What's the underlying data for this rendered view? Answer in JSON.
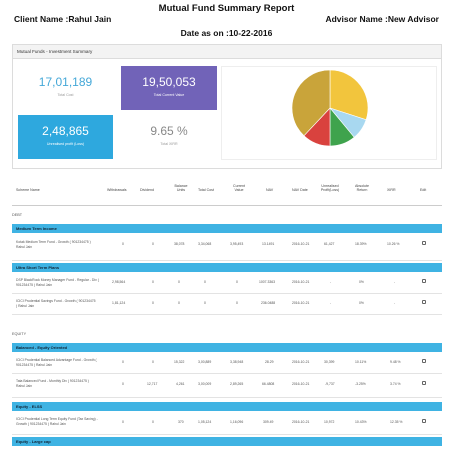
{
  "header": {
    "title": "Mutual Fund Summary Report",
    "client": "Client Name :Rahul Jain",
    "advisor": "Advisor Name :New Advisor",
    "date": "Date as on :10-22-2016"
  },
  "summary": {
    "panel_title": "Mutual Funds - Investment Summary",
    "total_cost": {
      "value": "17,01,189",
      "label": "Total Cost"
    },
    "current_value": {
      "value": "19,50,053",
      "label": "Total Current Value"
    },
    "unrealised": {
      "value": "2,48,865",
      "label": "Unrealised profit (Loss)"
    },
    "xirr": {
      "value": "9.65 %",
      "label": "Total XIRR"
    }
  },
  "pie": {
    "slices": [
      {
        "fraction": 0.3,
        "color": "#f2c53d"
      },
      {
        "fraction": 0.09,
        "color": "#a8d8f0"
      },
      {
        "fraction": 0.11,
        "color": "#3fa34d"
      },
      {
        "fraction": 0.12,
        "color": "#d9423e"
      },
      {
        "fraction": 0.38,
        "color": "#c9a43a"
      }
    ]
  },
  "table": {
    "headers": [
      "Scheme Name",
      "Withdrawals",
      "Dividend",
      "Balance Units",
      "Total Cost",
      "Current Value",
      "NAV",
      "NAV Date",
      "Unrealised Profit(Loss)",
      "Absolute Return",
      "XIRR",
      "Edit"
    ],
    "sections": {
      "debt": "DEBT",
      "equity": "EQUITY"
    },
    "categories": {
      "medium": "Medium Term Income",
      "ultra": "Ultra Short Term Plans",
      "balanced": "Balanced - Equity Oriented",
      "elss": "Equity - ELSS",
      "largecap": "Equity - Large cap"
    },
    "rows": [
      {
        "name": "Kotak Medium Term Fund - Growth ( 901234475 ) Rahul Jain",
        "withdrawals": "0",
        "dividend": "0",
        "units": "38,078",
        "cost": "3,34,068",
        "value": "3,95,493",
        "nav": "13.1491",
        "navdate": "2016-10-21",
        "pl": "61,427",
        "abs": "18.39%",
        "xirr": "10.26 %"
      },
      {
        "name": "DSP BlackRock Money Manager Fund - Regular - Div ( 901234475 ) Rahul Jain",
        "withdrawals": "2,98,564",
        "dividend": "0",
        "units": "0",
        "cost": "0",
        "value": "0",
        "nav": "1007.3363",
        "navdate": "2016-10-21",
        "pl": "-",
        "abs": "0%",
        "xirr": "-"
      },
      {
        "name": "ICICI Prudential Savings Fund - Growth ( 901234475 ) Rahul Jain",
        "withdrawals": "1,81,124",
        "dividend": "0",
        "units": "0",
        "cost": "0",
        "value": "0",
        "nav": "236.0488",
        "navdate": "2016-10-21",
        "pl": "-",
        "abs": "0%",
        "xirr": "-"
      },
      {
        "name": "ICICI Prudential Balanced Advantage Fund - Growth ( 901234475 ) Rahul Jain",
        "withdrawals": "0",
        "dividend": "0",
        "units": "15,322",
        "cost": "3,00,889",
        "value": "3,38,948",
        "nav": "28.29",
        "navdate": "2016-10-21",
        "pl": "30,399",
        "abs": "10.11%",
        "xirr": "9.48 %"
      },
      {
        "name": "Tata Balanced Fund - Monthly Div ( 901234475 ) Rahul Jain",
        "withdrawals": "0",
        "dividend": "12,717",
        "units": "4,261",
        "cost": "3,00,009",
        "value": "2,89,265",
        "nav": "66.4808",
        "navdate": "2016-10-21",
        "pl": "-9,737",
        "abs": "-3.25%",
        "xirr": "3.74 %"
      },
      {
        "name": "ICICI Prudential Long Term Equity Fund (Tax Saving) - Growth ( 901234475 ) Rahul Jain",
        "withdrawals": "0",
        "dividend": "0",
        "units": "370",
        "cost": "1,05,124",
        "value": "1,16,096",
        "nav": "309.49",
        "navdate": "2016-10-21",
        "pl": "10,972",
        "abs": "10.43%",
        "xirr": "12.35 %"
      }
    ]
  }
}
